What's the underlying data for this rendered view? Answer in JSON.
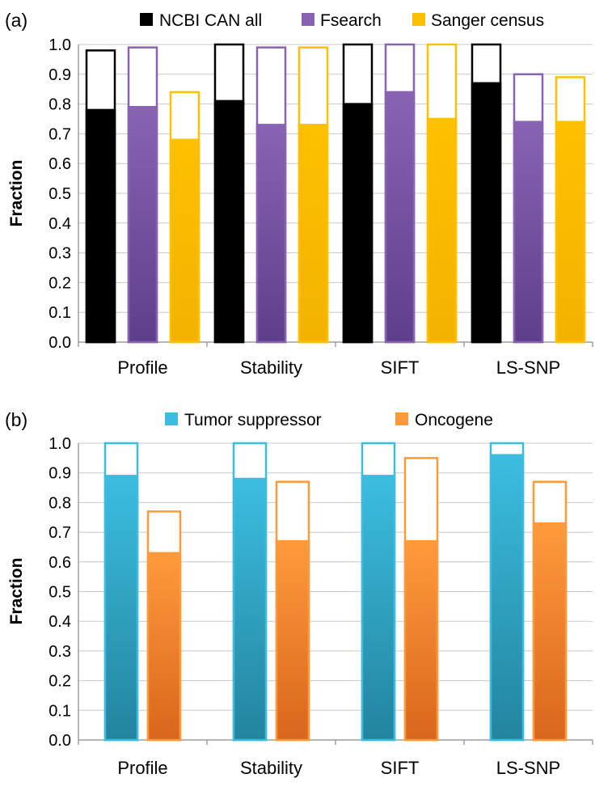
{
  "chart_data": [
    {
      "type": "bar",
      "panel_label": "(a)",
      "ylabel": "Fraction",
      "xlabel": "",
      "ylim": [
        0,
        1
      ],
      "yticks": [
        "0.0",
        "0.1",
        "0.2",
        "0.3",
        "0.4",
        "0.5",
        "0.6",
        "0.7",
        "0.8",
        "0.9",
        "1.0"
      ],
      "grid": true,
      "legend_position": "top",
      "categories": [
        "Profile",
        "Stability",
        "SIFT",
        "LS-SNP"
      ],
      "series": [
        {
          "name": "NCBI CAN all",
          "color": "#000000",
          "color_dark": "#000000",
          "values": [
            0.78,
            0.81,
            0.8,
            0.87
          ],
          "totals": [
            0.98,
            1.0,
            1.0,
            1.0
          ]
        },
        {
          "name": "Fsearch",
          "color": "#8a62b4",
          "color_dark": "#5e3f8b",
          "values": [
            0.79,
            0.73,
            0.84,
            0.74
          ],
          "totals": [
            0.99,
            0.99,
            1.0,
            0.9
          ]
        },
        {
          "name": "Sanger census",
          "color": "#ffc000",
          "color_dark": "#f2b200",
          "values": [
            0.68,
            0.73,
            0.75,
            0.74
          ],
          "totals": [
            0.84,
            0.99,
            1.0,
            0.89
          ]
        }
      ]
    },
    {
      "type": "bar",
      "panel_label": "(b)",
      "ylabel": "Fraction",
      "xlabel": "",
      "ylim": [
        0,
        1
      ],
      "yticks": [
        "0.0",
        "0.1",
        "0.2",
        "0.3",
        "0.4",
        "0.5",
        "0.6",
        "0.7",
        "0.8",
        "0.9",
        "1.0"
      ],
      "grid": true,
      "legend_position": "top",
      "categories": [
        "Profile",
        "Stability",
        "SIFT",
        "LS-SNP"
      ],
      "series": [
        {
          "name": "Tumor suppressor",
          "color": "#3cbde0",
          "color_dark": "#23849f",
          "values": [
            0.89,
            0.88,
            0.89,
            0.96
          ],
          "totals": [
            1.0,
            1.0,
            1.0,
            1.0
          ]
        },
        {
          "name": "Oncogene",
          "color": "#ff9a3c",
          "color_dark": "#d9661c",
          "values": [
            0.63,
            0.67,
            0.67,
            0.73
          ],
          "totals": [
            0.77,
            0.87,
            0.95,
            0.87
          ]
        }
      ]
    }
  ]
}
